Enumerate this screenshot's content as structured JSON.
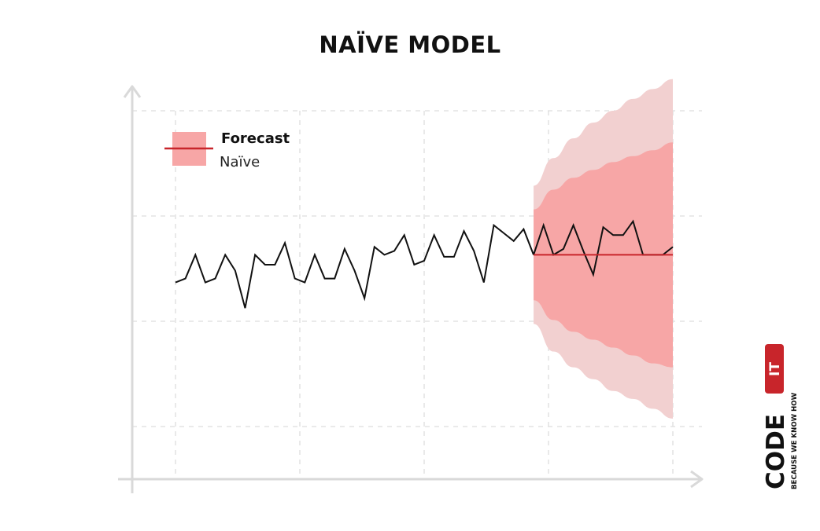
{
  "title": "NAÏVE MODEL",
  "legend": {
    "title": "Forecast",
    "subtitle": "Naïve"
  },
  "logo": {
    "main": "CODE",
    "badge": "IT",
    "tagline": "BECAUSE WE KNOW HOW"
  },
  "colors": {
    "history_line": "#111111",
    "forecast_line": "#c8252b",
    "inner_band": "#f7a6a6",
    "outer_band": "#f2d0d0",
    "grid": "#dddddd",
    "axis": "#d9d9d9",
    "logo_red": "#c8252b"
  },
  "chart_data": {
    "type": "line",
    "title": "NAÏVE MODEL",
    "xlabel": "",
    "ylabel": "",
    "xlim": [
      0,
      50
    ],
    "ylim": [
      0,
      8
    ],
    "grid": true,
    "legend_position": "top-left",
    "history": {
      "x": [
        0,
        1,
        2,
        3,
        4,
        5,
        6,
        7,
        8,
        9,
        10,
        11,
        12,
        13,
        14,
        15,
        16,
        17,
        18,
        19,
        20,
        21,
        22,
        23,
        24,
        25,
        26,
        27,
        28,
        29,
        30,
        31,
        32,
        33,
        34,
        35,
        36
      ],
      "y": [
        3.65,
        3.75,
        4.35,
        3.65,
        3.75,
        4.35,
        3.95,
        3.0,
        4.35,
        4.1,
        4.1,
        4.65,
        3.75,
        3.65,
        4.35,
        3.75,
        3.75,
        4.5,
        3.95,
        3.25,
        4.55,
        4.35,
        4.45,
        4.85,
        4.1,
        4.2,
        4.85,
        4.3,
        4.3,
        4.95,
        4.45,
        3.65,
        5.1,
        4.9,
        4.7,
        5.0,
        4.35
      ]
    },
    "forecast": {
      "name": "Naïve",
      "x": [
        36,
        50
      ],
      "y": [
        4.35,
        4.35
      ]
    },
    "actual_after": {
      "x": [
        36,
        37,
        38,
        39,
        40,
        41,
        42,
        43,
        44,
        45,
        46,
        47,
        48,
        49,
        50
      ],
      "y": [
        4.35,
        5.1,
        4.35,
        4.5,
        5.1,
        4.45,
        3.85,
        5.05,
        4.85,
        4.85,
        5.2,
        4.35,
        4.35,
        4.35,
        4.55
      ]
    },
    "interval_80": {
      "x": [
        36,
        38,
        40,
        42,
        44,
        46,
        48,
        50
      ],
      "lower": [
        3.2,
        2.7,
        2.4,
        2.2,
        2.0,
        1.8,
        1.6,
        1.5
      ],
      "upper": [
        5.5,
        6.0,
        6.3,
        6.5,
        6.7,
        6.85,
        7.0,
        7.2
      ]
    },
    "interval_95": {
      "x": [
        36,
        38,
        40,
        42,
        44,
        46,
        48,
        50
      ],
      "lower": [
        2.6,
        1.9,
        1.5,
        1.2,
        0.9,
        0.7,
        0.45,
        0.2
      ],
      "upper": [
        6.1,
        6.8,
        7.3,
        7.7,
        8.0,
        8.3,
        8.55,
        8.8
      ]
    }
  }
}
